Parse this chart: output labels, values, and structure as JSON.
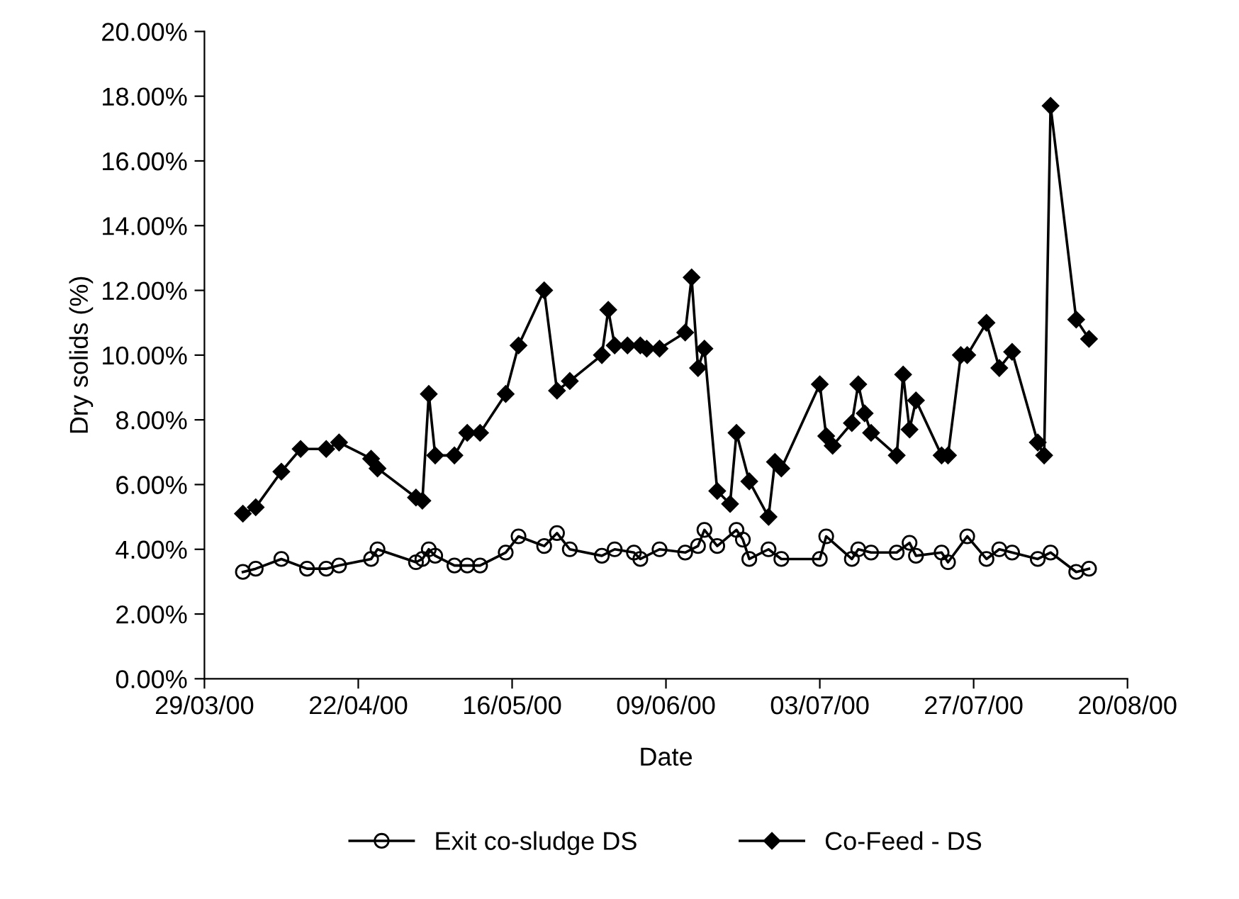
{
  "chart_data": {
    "type": "line",
    "xlabel": "Date",
    "ylabel": "Dry solids (%)",
    "xlim": [
      "2000-03-29",
      "2000-08-20"
    ],
    "xticks": [
      {
        "value": "2000-03-29",
        "label": "29/03/00"
      },
      {
        "value": "2000-04-22",
        "label": "22/04/00"
      },
      {
        "value": "2000-05-16",
        "label": "16/05/00"
      },
      {
        "value": "2000-06-09",
        "label": "09/06/00"
      },
      {
        "value": "2000-07-03",
        "label": "03/07/00"
      },
      {
        "value": "2000-07-27",
        "label": "27/07/00"
      },
      {
        "value": "2000-08-20",
        "label": "20/08/00"
      }
    ],
    "ylim": [
      0,
      20
    ],
    "yticks": [
      {
        "value": 0,
        "label": "0.00%"
      },
      {
        "value": 2,
        "label": "2.00%"
      },
      {
        "value": 4,
        "label": "4.00%"
      },
      {
        "value": 6,
        "label": "6.00%"
      },
      {
        "value": 8,
        "label": "8.00%"
      },
      {
        "value": 10,
        "label": "10.00%"
      },
      {
        "value": 12,
        "label": "12.00%"
      },
      {
        "value": 14,
        "label": "14.00%"
      },
      {
        "value": 16,
        "label": "16.00%"
      },
      {
        "value": 18,
        "label": "18.00%"
      },
      {
        "value": 20,
        "label": "20.00%"
      }
    ],
    "grid": false,
    "legend": "bottom",
    "line_style": "solid",
    "series": [
      {
        "name": "Exit co-sludge DS",
        "color": "#000000",
        "marker": "circle",
        "x": [
          "2000-04-04",
          "2000-04-06",
          "2000-04-10",
          "2000-04-14",
          "2000-04-17",
          "2000-04-19",
          "2000-04-24",
          "2000-04-25",
          "2000-05-01",
          "2000-05-02",
          "2000-05-03",
          "2000-05-04",
          "2000-05-07",
          "2000-05-09",
          "2000-05-11",
          "2000-05-15",
          "2000-05-17",
          "2000-05-21",
          "2000-05-23",
          "2000-05-25",
          "2000-05-30",
          "2000-06-01",
          "2000-06-04",
          "2000-06-05",
          "2000-06-08",
          "2000-06-12",
          "2000-06-14",
          "2000-06-15",
          "2000-06-17",
          "2000-06-20",
          "2000-06-21",
          "2000-06-22",
          "2000-06-25",
          "2000-06-27",
          "2000-07-03",
          "2000-07-04",
          "2000-07-08",
          "2000-07-09",
          "2000-07-11",
          "2000-07-15",
          "2000-07-17",
          "2000-07-18",
          "2000-07-22",
          "2000-07-23",
          "2000-07-26",
          "2000-07-29",
          "2000-07-31",
          "2000-08-02",
          "2000-08-06",
          "2000-08-08",
          "2000-08-12",
          "2000-08-14"
        ],
        "values": [
          3.3,
          3.4,
          3.7,
          3.4,
          3.4,
          3.5,
          3.7,
          4.0,
          3.6,
          3.7,
          4.0,
          3.8,
          3.5,
          3.5,
          3.5,
          3.9,
          4.4,
          4.1,
          4.5,
          4.0,
          3.8,
          4.0,
          3.9,
          3.7,
          4.0,
          3.9,
          4.1,
          4.6,
          4.1,
          4.6,
          4.3,
          3.7,
          4.0,
          3.7,
          3.7,
          4.4,
          3.7,
          4.0,
          3.9,
          3.9,
          4.2,
          3.8,
          3.9,
          3.6,
          4.4,
          3.7,
          4.0,
          3.9,
          3.7,
          3.9,
          3.3,
          3.4
        ]
      },
      {
        "name": "Co-Feed - DS",
        "color": "#000000",
        "marker": "diamond",
        "x": [
          "2000-04-04",
          "2000-04-06",
          "2000-04-10",
          "2000-04-13",
          "2000-04-17",
          "2000-04-19",
          "2000-04-24",
          "2000-04-25",
          "2000-05-01",
          "2000-05-02",
          "2000-05-03",
          "2000-05-04",
          "2000-05-07",
          "2000-05-09",
          "2000-05-11",
          "2000-05-15",
          "2000-05-17",
          "2000-05-21",
          "2000-05-23",
          "2000-05-25",
          "2000-05-30",
          "2000-05-31",
          "2000-06-01",
          "2000-06-03",
          "2000-06-05",
          "2000-06-06",
          "2000-06-08",
          "2000-06-12",
          "2000-06-13",
          "2000-06-14",
          "2000-06-15",
          "2000-06-17",
          "2000-06-19",
          "2000-06-20",
          "2000-06-22",
          "2000-06-25",
          "2000-06-26",
          "2000-06-27",
          "2000-07-03",
          "2000-07-04",
          "2000-07-05",
          "2000-07-08",
          "2000-07-09",
          "2000-07-10",
          "2000-07-11",
          "2000-07-15",
          "2000-07-16",
          "2000-07-17",
          "2000-07-18",
          "2000-07-22",
          "2000-07-23",
          "2000-07-25",
          "2000-07-26",
          "2000-07-29",
          "2000-07-31",
          "2000-08-02",
          "2000-08-06",
          "2000-08-07",
          "2000-08-08",
          "2000-08-12",
          "2000-08-14"
        ],
        "values": [
          5.1,
          5.3,
          6.4,
          7.1,
          7.1,
          7.3,
          6.8,
          6.5,
          5.6,
          5.5,
          8.8,
          6.9,
          6.9,
          7.6,
          7.6,
          8.8,
          10.3,
          12.0,
          8.9,
          9.2,
          10.0,
          11.4,
          10.3,
          10.3,
          10.3,
          10.2,
          10.2,
          10.7,
          12.4,
          9.6,
          10.2,
          5.8,
          5.4,
          7.6,
          6.1,
          5.0,
          6.7,
          6.5,
          9.1,
          7.5,
          7.2,
          7.9,
          9.1,
          8.2,
          7.6,
          6.9,
          9.4,
          7.7,
          8.6,
          6.9,
          6.9,
          10.0,
          10.0,
          11.0,
          9.6,
          10.1,
          7.3,
          6.9,
          17.7,
          11.1,
          10.5
        ]
      }
    ]
  }
}
